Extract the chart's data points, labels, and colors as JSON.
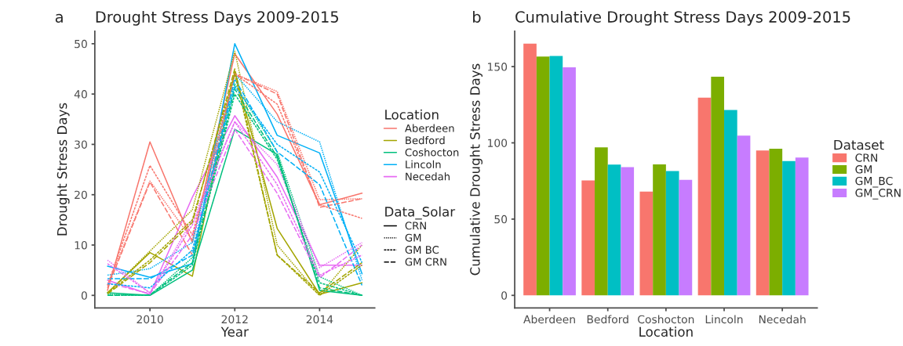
{
  "chart_data": [
    {
      "type": "line",
      "title": "Drought Stress Days 2009-2015",
      "xlabel": "Year",
      "ylabel": "Drought Stress Days",
      "legend_title": "Location",
      "annotations": [
        "a",
        "Data_Solar",
        "CRN",
        "GM",
        "GM BC",
        "GM CRN"
      ],
      "x": [
        2009,
        2010,
        2011,
        2012,
        2013,
        2014,
        2015
      ],
      "xlim": [
        2008.7,
        2015.3
      ],
      "xticks": [
        2010,
        2012,
        2014
      ],
      "ylim": [
        -2.5,
        52.5
      ],
      "yticks": [
        0,
        10,
        20,
        30,
        40,
        50
      ],
      "grid": false,
      "legend": "right",
      "series": [
        {
          "name": "Aberdeen",
          "color": "#f8766d",
          "line_style": "solid",
          "values": [
            1,
            30.5,
            10.5,
            48,
            36,
            18,
            20.3
          ]
        },
        {
          "color": "#f8766d",
          "line_style": "dotted",
          "values": [
            2,
            22.7,
            11,
            44,
            40.5,
            19,
            19.2
          ]
        },
        {
          "color": "#f8766d",
          "line_style": "dashed",
          "values": [
            2,
            25.8,
            12,
            44,
            38,
            18,
            15.3
          ]
        },
        {
          "color": "#f8766d",
          "line_style": "longdash",
          "values": [
            1.5,
            22.5,
            8,
            44,
            40,
            17.5,
            19.2
          ]
        },
        {
          "name": "Bedford",
          "color": "#a3a500",
          "line_style": "solid",
          "values": [
            0.5,
            8.5,
            3.8,
            44.5,
            13.3,
            0.2,
            2.5
          ]
        },
        {
          "color": "#a3a500",
          "line_style": "dotted",
          "values": [
            0.5,
            8.8,
            17,
            48.5,
            10,
            0,
            10
          ]
        },
        {
          "color": "#a3a500",
          "line_style": "dashed",
          "values": [
            0.5,
            7,
            15,
            44,
            8,
            0,
            6
          ]
        },
        {
          "color": "#a3a500",
          "line_style": "longdash",
          "values": [
            0.3,
            6.5,
            14.5,
            45,
            8,
            0.5,
            6.5
          ]
        },
        {
          "name": "Coshocton",
          "color": "#00bf7d",
          "line_style": "solid",
          "values": [
            0.5,
            0,
            5,
            33,
            28,
            1,
            0
          ]
        },
        {
          "color": "#00bf7d",
          "line_style": "dotted",
          "values": [
            0.2,
            0,
            7.5,
            42,
            28.5,
            3.7,
            0
          ]
        },
        {
          "color": "#00bf7d",
          "line_style": "dashed",
          "values": [
            0,
            0,
            6,
            40,
            27,
            2.5,
            0
          ]
        },
        {
          "color": "#00bf7d",
          "line_style": "longdash",
          "values": [
            0,
            0.1,
            6.5,
            41,
            27.5,
            1.5,
            0
          ]
        },
        {
          "name": "Lincoln",
          "color": "#00b0f6",
          "line_style": "solid",
          "values": [
            5.8,
            3.6,
            6.3,
            50,
            31.8,
            28.3,
            4.3
          ]
        },
        {
          "color": "#00b0f6",
          "line_style": "dotted",
          "values": [
            4,
            5.3,
            10.5,
            44,
            34.5,
            30.5,
            3
          ]
        },
        {
          "color": "#00b0f6",
          "line_style": "dashed",
          "values": [
            2.3,
            1.5,
            9,
            41.5,
            30,
            24.5,
            6.5
          ]
        },
        {
          "color": "#00b0f6",
          "line_style": "longdash",
          "values": [
            3.3,
            3.3,
            8,
            43,
            28.5,
            22,
            2
          ]
        },
        {
          "name": "Necedah",
          "color": "#e76bf3",
          "line_style": "solid",
          "values": [
            3,
            0.2,
            19.5,
            35.7,
            23.5,
            6,
            6
          ]
        },
        {
          "color": "#e76bf3",
          "line_style": "dotted",
          "values": [
            7,
            0.5,
            15,
            34.5,
            26,
            5.5,
            10.5
          ]
        },
        {
          "color": "#e76bf3",
          "line_style": "dashed",
          "values": [
            6.3,
            0.5,
            14,
            34.5,
            22,
            4,
            8
          ]
        },
        {
          "color": "#e76bf3",
          "line_style": "longdash",
          "values": [
            2.5,
            0.3,
            12,
            33,
            20.3,
            3.5,
            10
          ]
        }
      ]
    },
    {
      "type": "bar",
      "title": "Cumulative Drought Stress Days 2009-2015",
      "xlabel": "Location",
      "ylabel": "Cumulative Drought Stress Days",
      "legend_title": "Dataset",
      "annotations": [
        "b"
      ],
      "categories": [
        "Aberdeen",
        "Bedford",
        "Coshocton",
        "Lincoln",
        "Necedah"
      ],
      "ylim": [
        -8.25,
        173.25
      ],
      "yticks": [
        0,
        50,
        100,
        150
      ],
      "grid": false,
      "legend": "right",
      "series": [
        {
          "name": "CRN",
          "color": "#f8766d",
          "values": [
            165,
            75.3,
            68,
            129.6,
            95
          ]
        },
        {
          "name": "GM",
          "color": "#7cae00",
          "values": [
            156.6,
            97.1,
            85.9,
            143.4,
            96.1
          ]
        },
        {
          "name": "GM_BC",
          "color": "#00bfc4",
          "values": [
            157,
            85.7,
            81.5,
            121.6,
            88.1
          ]
        },
        {
          "name": "GM_CRN",
          "color": "#c77cff",
          "values": [
            149.5,
            84.1,
            75.7,
            104.8,
            90.4
          ]
        }
      ]
    }
  ]
}
